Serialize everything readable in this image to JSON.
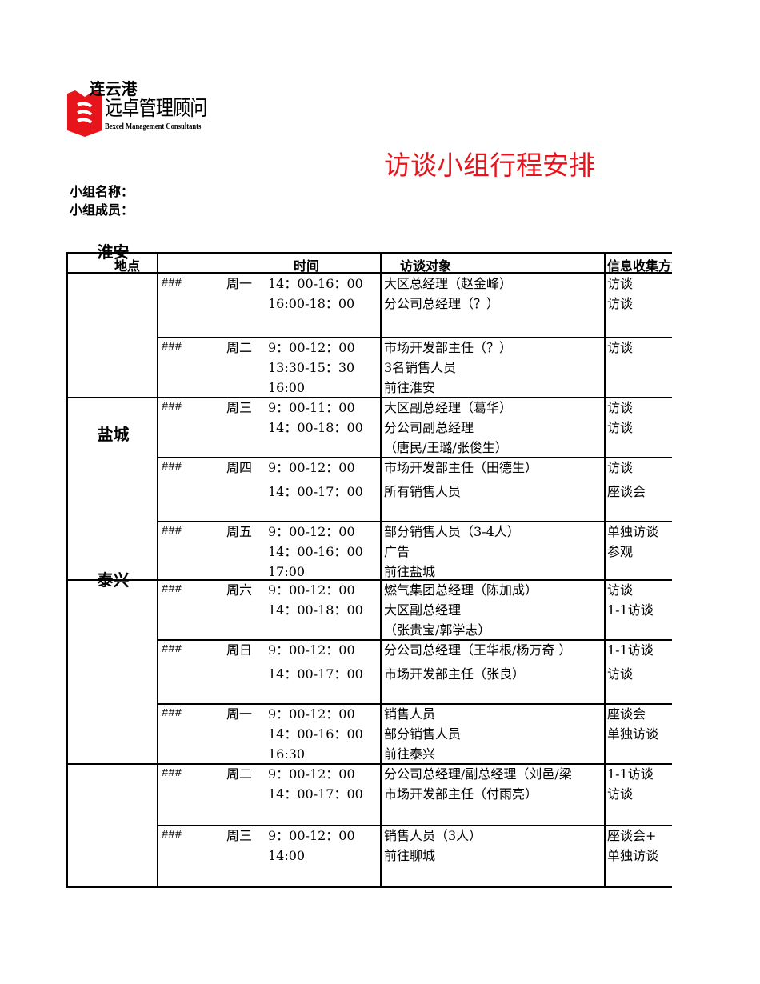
{
  "logo": {
    "name_cn": "远卓管理顾问",
    "name_en": "Bexcel Management Consultants",
    "color": "#e8141c"
  },
  "title": "访谈小组行程安排",
  "group_name_label": "小组名称：",
  "group_members_label": "小组成员：",
  "table": {
    "headers": [
      "地点",
      "时间",
      "访谈对象",
      "信息收集方式"
    ],
    "locations": [
      "连云港",
      "淮安",
      "盐城",
      "泰兴"
    ],
    "rows": [
      {
        "date": "###",
        "weekday": "周一",
        "times": [
          "14：00-16：00",
          "16:00-18：00"
        ],
        "subjects": [
          "大区总经理（赵金峰）",
          "分公司总经理（？）"
        ],
        "methods": [
          "访谈",
          "访谈"
        ]
      },
      {
        "date": "###",
        "weekday": "周二",
        "times": [
          "9：00-12：00",
          "13:30-15：30",
          "16:00"
        ],
        "subjects": [
          "市场开发部主任（？）",
          "3名销售人员",
          "前往淮安"
        ],
        "methods": [
          "访谈"
        ]
      },
      {
        "date": "###",
        "weekday": "周三",
        "times": [
          "9：00-11：00",
          "14：00-18：00"
        ],
        "subjects": [
          "大区副总经理（葛华）",
          "分公司副总经理",
          "（唐民/王璐/张俊生）"
        ],
        "methods": [
          "访谈",
          "访谈"
        ]
      },
      {
        "date": "###",
        "weekday": "周四",
        "times": [
          "9：00-12：00",
          "14：00-17：00"
        ],
        "subjects": [
          "市场开发部主任（田德生）",
          "所有销售人员"
        ],
        "methods": [
          "访谈",
          "座谈会"
        ]
      },
      {
        "date": "###",
        "weekday": "周五",
        "times": [
          "9：00-12：00",
          "14：00-16：00",
          "17:00"
        ],
        "subjects": [
          "部分销售人员（3-4人）",
          "广告",
          "前往盐城"
        ],
        "methods": [
          "单独访谈",
          "参观"
        ]
      },
      {
        "date": "###",
        "weekday": "周六",
        "times": [
          "9：00-12：00",
          "14：00-18：00"
        ],
        "subjects": [
          "燃气集团总经理（陈加成）",
          "大区副总经理",
          "（张贵宝/郭学志）"
        ],
        "methods": [
          "访谈",
          "1-1访谈"
        ]
      },
      {
        "date": "###",
        "weekday": "周日",
        "times": [
          "9：00-12：00",
          "14：00-17：00"
        ],
        "subjects": [
          "分公司总经理（王华根/杨万奇 ）",
          "市场开发部主任（张良）"
        ],
        "methods": [
          "1-1访谈",
          "访谈"
        ]
      },
      {
        "date": "###",
        "weekday": "周一",
        "times": [
          "9：00-12：00",
          "14：00-16：00",
          "16:30"
        ],
        "subjects": [
          "销售人员",
          "部分销售人员",
          "前往泰兴"
        ],
        "methods": [
          "座谈会",
          "单独访谈"
        ]
      },
      {
        "date": "###",
        "weekday": "周二",
        "times": [
          "9：00-12：00",
          "14：00-17：00"
        ],
        "subjects": [
          "分公司总经理/副总经理（刘邑/梁",
          "市场开发部主任（付雨亮）"
        ],
        "methods": [
          "1-1访谈",
          "访谈"
        ]
      },
      {
        "date": "###",
        "weekday": "周三",
        "times": [
          "9：00-12：00",
          "14:00"
        ],
        "subjects": [
          "销售人员（3人）",
          "前往聊城"
        ],
        "methods": [
          "座谈会+",
          "单独访谈"
        ]
      }
    ]
  }
}
